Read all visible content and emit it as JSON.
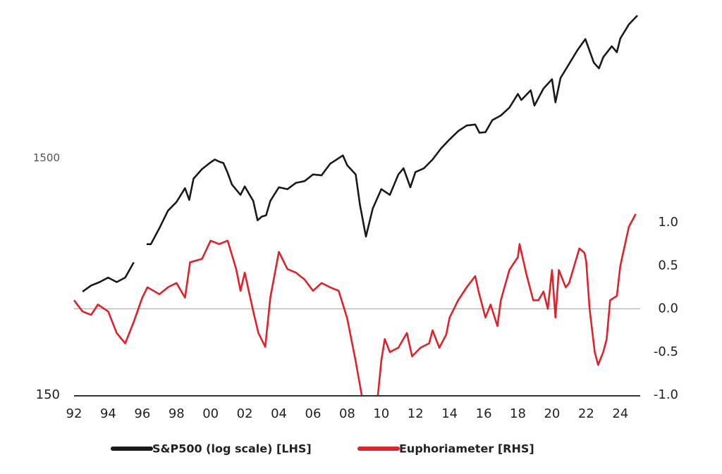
{
  "chart_data": {
    "type": "line",
    "xlim": [
      1992,
      2025
    ],
    "xticks": [
      {
        "value": 1992,
        "label": "92"
      },
      {
        "value": 1994,
        "label": "94"
      },
      {
        "value": 1996,
        "label": "96"
      },
      {
        "value": 1998,
        "label": "98"
      },
      {
        "value": 2000,
        "label": "00"
      },
      {
        "value": 2002,
        "label": "02"
      },
      {
        "value": 2004,
        "label": "04"
      },
      {
        "value": 2006,
        "label": "06"
      },
      {
        "value": 2008,
        "label": "08"
      },
      {
        "value": 2010,
        "label": "10"
      },
      {
        "value": 2012,
        "label": "12"
      },
      {
        "value": 2014,
        "label": "14"
      },
      {
        "value": 2016,
        "label": "16"
      },
      {
        "value": 2018,
        "label": "18"
      },
      {
        "value": 2020,
        "label": "20"
      },
      {
        "value": 2022,
        "label": "22"
      },
      {
        "value": 2024,
        "label": "24"
      }
    ],
    "ylim": [
      150,
      6000
    ],
    "ylog": true,
    "yticks": [
      150,
      1500
    ],
    "y2lim": [
      -1.0,
      3.4
    ],
    "y2ticks": [
      {
        "value": -1.0,
        "label": "-1.0"
      },
      {
        "value": -0.5,
        "label": "-0.5"
      },
      {
        "value": 0.0,
        "label": "0.0"
      },
      {
        "value": 0.5,
        "label": "0.5"
      },
      {
        "value": 1.0,
        "label": "1.0"
      }
    ],
    "y2_zero_line": true,
    "legend": "bottom",
    "series": [
      {
        "name": "S&P500 (log scale) [LHS]",
        "color": "#1a1a1a",
        "x": [
          1992.5,
          1993.0,
          1993.5,
          1994.0,
          1994.5,
          1995.0,
          1995.5,
          1995.75,
          1996.25,
          1996.5,
          1997.0,
          1997.5,
          1998.0,
          1998.5,
          1998.75,
          1999.0,
          1999.5,
          2000.0,
          2000.25,
          2000.5,
          2000.75,
          2001.0,
          2001.25,
          2001.75,
          2002.0,
          2002.5,
          2002.75,
          2003.0,
          2003.25,
          2003.5,
          2004.0,
          2004.5,
          2005.0,
          2005.5,
          2006.0,
          2006.5,
          2007.0,
          2007.75,
          2008.0,
          2008.5,
          2008.75,
          2009.1,
          2009.5,
          2010.0,
          2010.5,
          2011.0,
          2011.3,
          2011.7,
          2012.0,
          2012.5,
          2013.0,
          2013.5,
          2014.0,
          2014.5,
          2015.0,
          2015.5,
          2015.75,
          2016.1,
          2016.5,
          2017.0,
          2017.5,
          2018.0,
          2018.2,
          2018.75,
          2018.97,
          2019.5,
          2020.0,
          2020.2,
          2020.5,
          2021.0,
          2021.5,
          2021.95,
          2022.45,
          2022.75,
          2023.0,
          2023.5,
          2023.8,
          2024.0,
          2024.5,
          2024.8,
          2025.0
        ],
        "values": [
          410,
          435,
          450,
          470,
          450,
          470,
          545,
          null,
          650,
          650,
          760,
          900,
          980,
          1120,
          1000,
          1230,
          1350,
          1440,
          1480,
          1450,
          1430,
          1300,
          1160,
          1050,
          1140,
          990,
          820,
          850,
          860,
          990,
          1130,
          1110,
          1180,
          1200,
          1280,
          1270,
          1420,
          1540,
          1400,
          1280,
          950,
          700,
          920,
          1110,
          1050,
          1280,
          1360,
          1130,
          1310,
          1360,
          1480,
          1650,
          1800,
          1950,
          2060,
          2080,
          1920,
          1930,
          2170,
          2270,
          2450,
          2800,
          2640,
          2900,
          2500,
          2950,
          3230,
          2580,
          3270,
          3750,
          4300,
          4770,
          3790,
          3590,
          4000,
          4450,
          4200,
          4800,
          5500,
          5800,
          6000
        ]
      },
      {
        "name": "Euphoriameter [RHS]",
        "color": "#e3202a",
        "axis": "y2",
        "x": [
          1992.0,
          1992.5,
          1993.0,
          1993.4,
          1994.0,
          1994.5,
          1995.0,
          1995.5,
          1996.0,
          1996.3,
          1997.0,
          1997.5,
          1998.0,
          1998.5,
          1998.8,
          1999.5,
          2000.0,
          2000.5,
          2001.0,
          2001.5,
          2001.75,
          2002.0,
          2002.5,
          2002.8,
          2003.2,
          2003.5,
          2004.0,
          2004.5,
          2005.0,
          2005.5,
          2006.0,
          2006.5,
          2007.0,
          2007.5,
          2008.0,
          2008.5,
          2008.85,
          2009.3,
          2009.8,
          2010.0,
          2010.2,
          2010.5,
          2011.0,
          2011.5,
          2011.8,
          2012.3,
          2012.8,
          2013.0,
          2013.4,
          2013.8,
          2014.0,
          2014.5,
          2015.0,
          2015.5,
          2015.7,
          2016.1,
          2016.4,
          2016.8,
          2017.0,
          2017.5,
          2018.0,
          2018.1,
          2018.5,
          2018.9,
          2019.2,
          2019.5,
          2019.75,
          2020.0,
          2020.2,
          2020.4,
          2020.8,
          2021.0,
          2021.6,
          2021.9,
          2022.0,
          2022.2,
          2022.5,
          2022.7,
          2023.0,
          2023.2,
          2023.4,
          2023.8,
          2024.0,
          2024.5,
          2024.9
        ],
        "values": [
          0.1,
          -0.03,
          -0.07,
          0.05,
          -0.03,
          -0.28,
          -0.4,
          -0.15,
          0.13,
          0.25,
          0.17,
          0.25,
          0.3,
          0.13,
          0.54,
          0.58,
          0.79,
          0.75,
          0.79,
          0.46,
          0.21,
          0.42,
          -0.03,
          -0.28,
          -0.44,
          0.13,
          0.66,
          0.46,
          0.42,
          0.34,
          0.21,
          0.3,
          0.25,
          0.21,
          -0.11,
          -0.61,
          -1.0,
          null,
          -1.0,
          -0.6,
          -0.35,
          -0.5,
          -0.45,
          -0.28,
          -0.55,
          -0.45,
          -0.4,
          -0.25,
          -0.45,
          -0.3,
          -0.1,
          0.1,
          0.25,
          0.38,
          0.2,
          -0.1,
          0.05,
          -0.2,
          0.1,
          0.45,
          0.6,
          0.75,
          0.4,
          0.1,
          0.1,
          0.2,
          0.0,
          0.45,
          -0.1,
          0.45,
          0.25,
          0.3,
          0.7,
          0.65,
          0.55,
          0.0,
          -0.5,
          -0.65,
          -0.5,
          -0.35,
          0.1,
          0.15,
          0.5,
          0.95,
          1.1
        ]
      }
    ]
  }
}
